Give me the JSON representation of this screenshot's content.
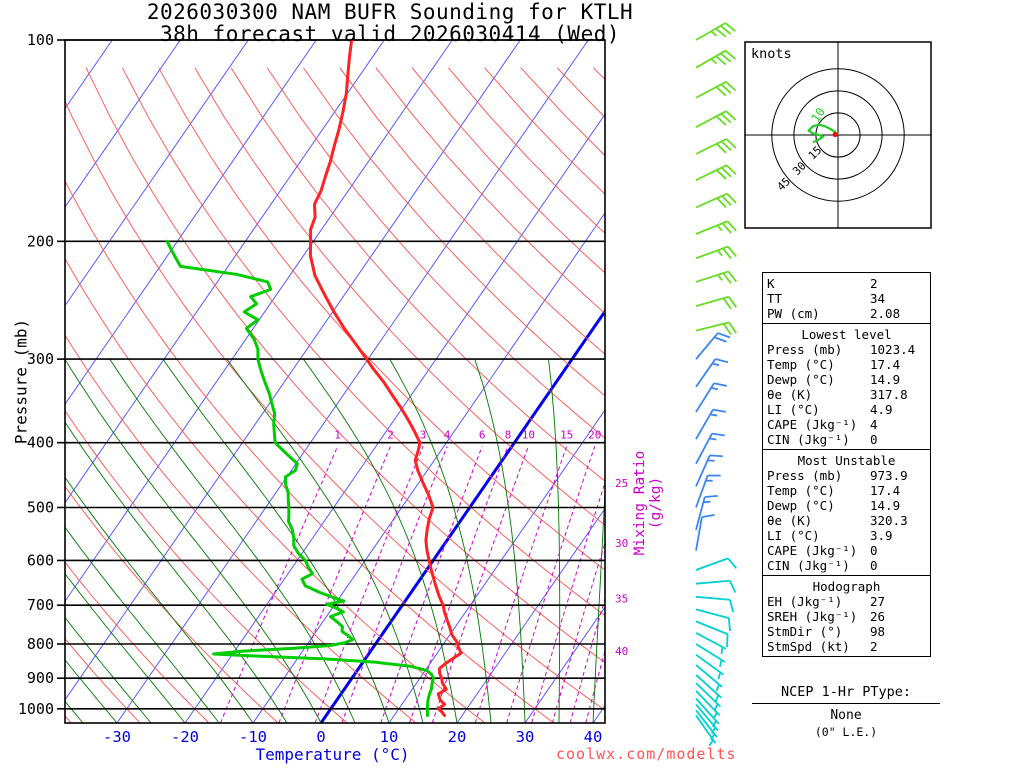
{
  "header": {
    "title_line1": "2026030300 NAM BUFR Sounding for KTLH",
    "title_line2": "38h forecast valid 2026030414 (Wed)"
  },
  "footer": {
    "watermark": "coolwx.com/modelts"
  },
  "hodograph_panel": {
    "units_label": "knots"
  },
  "ptype": {
    "title": "NCEP 1-Hr PType:",
    "value": "None",
    "note": "(0\" L.E.)"
  },
  "panel": {
    "box1": {
      "rows": [
        {
          "label": "K",
          "value": "2"
        },
        {
          "label": "TT",
          "value": "34"
        },
        {
          "label": "PW (cm)",
          "value": "2.08"
        }
      ]
    },
    "box2": {
      "header": "Lowest level",
      "rows": [
        {
          "label": "Press (mb)",
          "value": "1023.4"
        },
        {
          "label": "Temp (°C)",
          "value": "17.4"
        },
        {
          "label": "Dewp (°C)",
          "value": "14.9"
        },
        {
          "label": "θe (K)",
          "value": "317.8"
        },
        {
          "label": "LI (°C)",
          "value": "4.9"
        },
        {
          "label": "CAPE (Jkg⁻¹)",
          "value": "4"
        },
        {
          "label": "CIN (Jkg⁻¹)",
          "value": "0"
        }
      ]
    },
    "box3": {
      "header": "Most Unstable",
      "rows": [
        {
          "label": "Press (mb)",
          "value": "973.9"
        },
        {
          "label": "Temp (°C)",
          "value": "17.4"
        },
        {
          "label": "Dewp (°C)",
          "value": "14.9"
        },
        {
          "label": "θe (K)",
          "value": "320.3"
        },
        {
          "label": "LI (°C)",
          "value": "3.9"
        },
        {
          "label": "CAPE (Jkg⁻¹)",
          "value": "0"
        },
        {
          "label": "CIN (Jkg⁻¹)",
          "value": "0"
        }
      ]
    },
    "box4": {
      "header": "Hodograph",
      "rows": [
        {
          "label": "EH (Jkg⁻¹)",
          "value": "27"
        },
        {
          "label": "SREH (Jkg⁻¹)",
          "value": "26"
        },
        {
          "label": "StmDir (°)",
          "value": "98"
        },
        {
          "label": "StmSpd (kt)",
          "value": "2"
        }
      ]
    }
  },
  "chart_data": {
    "type": "skewt_log_p",
    "station": "KTLH",
    "model": "NAM BUFR",
    "run": "2026030300",
    "valid": "2026030414 (Wed)",
    "forecast_hour": 38,
    "ylabel": "Pressure (mb)",
    "xlabel": "Temperature (°C)",
    "mixing_ratio_axis_label": "Mixing Ratio (g/kg)",
    "pressure_ticks": [
      100,
      200,
      300,
      400,
      500,
      600,
      700,
      800,
      900,
      1000
    ],
    "temp_ticks": [
      -30,
      -20,
      -10,
      0,
      10,
      20,
      30,
      40
    ],
    "pressure_range": [
      100,
      1050
    ],
    "isotherm_step": 10,
    "highlight_isotherm": 0,
    "mixing_ratio_lines": [
      1,
      2,
      3,
      4,
      6,
      8,
      10,
      15,
      20,
      25,
      30,
      35,
      40
    ],
    "colors": {
      "isobar": "#000000",
      "isotherm": "#4848ff",
      "isotherm_highlight": "#0000ee",
      "dry_adiabat": "#ff5050",
      "moist_adiabat": "#007700",
      "mixing_ratio": "#cc00cc",
      "temperature": "#ff2222",
      "dewpoint": "#00cc00",
      "temp_tick_label": "#0000dd",
      "barb_high": "#66dd22",
      "barb_mid": "#3d85f0",
      "barb_low": "#00d0d0",
      "hodo_trace": "#22cc22",
      "storm_motion": "#ff0000",
      "watermark": "#ff5555"
    },
    "temperature_profile": [
      [
        1023.4,
        17.4
      ],
      [
        1010,
        16.6
      ],
      [
        1000,
        15.8
      ],
      [
        985,
        16.3
      ],
      [
        970,
        15.2
      ],
      [
        950,
        14.3
      ],
      [
        935,
        15.0
      ],
      [
        915,
        13.8
      ],
      [
        900,
        13.2
      ],
      [
        885,
        12.4
      ],
      [
        870,
        11.9
      ],
      [
        855,
        12.3
      ],
      [
        840,
        12.9
      ],
      [
        825,
        13.5
      ],
      [
        810,
        12.6
      ],
      [
        795,
        11.8
      ],
      [
        775,
        10.3
      ],
      [
        755,
        9.2
      ],
      [
        735,
        8.0
      ],
      [
        715,
        6.8
      ],
      [
        700,
        6.0
      ],
      [
        680,
        4.6
      ],
      [
        660,
        3.3
      ],
      [
        640,
        2.0
      ],
      [
        620,
        0.7
      ],
      [
        600,
        -0.6
      ],
      [
        580,
        -1.9
      ],
      [
        560,
        -3.1
      ],
      [
        540,
        -4.0
      ],
      [
        520,
        -4.8
      ],
      [
        500,
        -5.4
      ],
      [
        480,
        -7.2
      ],
      [
        460,
        -9.3
      ],
      [
        440,
        -11.4
      ],
      [
        425,
        -12.8
      ],
      [
        410,
        -13.4
      ],
      [
        400,
        -13.9
      ],
      [
        385,
        -15.8
      ],
      [
        370,
        -17.9
      ],
      [
        355,
        -20.2
      ],
      [
        340,
        -22.7
      ],
      [
        325,
        -25.3
      ],
      [
        310,
        -28.3
      ],
      [
        300,
        -30.2
      ],
      [
        285,
        -33.3
      ],
      [
        270,
        -36.6
      ],
      [
        255,
        -39.8
      ],
      [
        240,
        -43.0
      ],
      [
        225,
        -46.3
      ],
      [
        210,
        -49.0
      ],
      [
        200,
        -50.4
      ],
      [
        192,
        -51.6
      ],
      [
        184,
        -52.2
      ],
      [
        176,
        -53.6
      ],
      [
        168,
        -54.0
      ],
      [
        160,
        -54.8
      ],
      [
        152,
        -55.6
      ],
      [
        144,
        -56.6
      ],
      [
        136,
        -57.6
      ],
      [
        128,
        -58.8
      ],
      [
        120,
        -60.2
      ],
      [
        112,
        -62.0
      ],
      [
        106,
        -63.4
      ],
      [
        100,
        -64.8
      ]
    ],
    "dewpoint_profile": [
      [
        1023.4,
        14.9
      ],
      [
        1010,
        14.5
      ],
      [
        1000,
        14.2
      ],
      [
        985,
        13.8
      ],
      [
        970,
        13.4
      ],
      [
        950,
        13.0
      ],
      [
        935,
        12.8
      ],
      [
        915,
        12.3
      ],
      [
        900,
        12.0
      ],
      [
        888,
        11.3
      ],
      [
        876,
        10.2
      ],
      [
        864,
        7.5
      ],
      [
        852,
        2.0
      ],
      [
        842,
        -6.0
      ],
      [
        834,
        -16.0
      ],
      [
        828,
        -22.8
      ],
      [
        820,
        -19.0
      ],
      [
        812,
        -11.5
      ],
      [
        804,
        -6.5
      ],
      [
        796,
        -4.6
      ],
      [
        788,
        -3.8
      ],
      [
        778,
        -4.8
      ],
      [
        766,
        -6.2
      ],
      [
        754,
        -6.6
      ],
      [
        742,
        -7.8
      ],
      [
        728,
        -9.4
      ],
      [
        716,
        -8.0
      ],
      [
        706,
        -9.6
      ],
      [
        698,
        -11.2
      ],
      [
        690,
        -9.0
      ],
      [
        682,
        -10.8
      ],
      [
        670,
        -13.4
      ],
      [
        655,
        -16.2
      ],
      [
        640,
        -17.4
      ],
      [
        628,
        -16.4
      ],
      [
        615,
        -17.6
      ],
      [
        600,
        -18.8
      ],
      [
        585,
        -20.6
      ],
      [
        570,
        -22.0
      ],
      [
        555,
        -22.8
      ],
      [
        540,
        -23.8
      ],
      [
        525,
        -25.2
      ],
      [
        510,
        -26.0
      ],
      [
        500,
        -26.6
      ],
      [
        488,
        -27.4
      ],
      [
        475,
        -28.2
      ],
      [
        462,
        -29.4
      ],
      [
        450,
        -30.2
      ],
      [
        440,
        -29.4
      ],
      [
        430,
        -29.8
      ],
      [
        420,
        -31.6
      ],
      [
        410,
        -33.4
      ],
      [
        400,
        -35.2
      ],
      [
        388,
        -36.2
      ],
      [
        375,
        -37.3
      ],
      [
        362,
        -38.2
      ],
      [
        350,
        -39.6
      ],
      [
        338,
        -41.0
      ],
      [
        325,
        -42.8
      ],
      [
        312,
        -44.6
      ],
      [
        300,
        -46.2
      ],
      [
        290,
        -47.2
      ],
      [
        280,
        -48.8
      ],
      [
        270,
        -51.0
      ],
      [
        262,
        -50.2
      ],
      [
        255,
        -53.0
      ],
      [
        248,
        -52.0
      ],
      [
        242,
        -53.6
      ],
      [
        236,
        -51.4
      ],
      [
        230,
        -52.6
      ],
      [
        224,
        -58.0
      ],
      [
        218,
        -67.0
      ],
      [
        212,
        -68.5
      ],
      [
        206,
        -70.0
      ],
      [
        200,
        -71.5
      ]
    ],
    "wind_barbs": [
      [
        100,
        60,
        35,
        "g"
      ],
      [
        110,
        60,
        35,
        "g"
      ],
      [
        122,
        62,
        30,
        "g"
      ],
      [
        135,
        62,
        30,
        "g"
      ],
      [
        148,
        64,
        30,
        "g"
      ],
      [
        162,
        64,
        30,
        "g"
      ],
      [
        178,
        66,
        30,
        "g"
      ],
      [
        195,
        68,
        25,
        "g"
      ],
      [
        212,
        70,
        25,
        "g"
      ],
      [
        230,
        72,
        25,
        "g"
      ],
      [
        250,
        74,
        20,
        "g"
      ],
      [
        272,
        76,
        20,
        "g"
      ],
      [
        300,
        40,
        20,
        "b"
      ],
      [
        330,
        35,
        15,
        "b"
      ],
      [
        360,
        32,
        15,
        "b"
      ],
      [
        395,
        30,
        15,
        "b"
      ],
      [
        430,
        28,
        15,
        "b"
      ],
      [
        465,
        24,
        15,
        "b"
      ],
      [
        500,
        20,
        15,
        "b"
      ],
      [
        540,
        15,
        15,
        "b"
      ],
      [
        580,
        10,
        10,
        "b"
      ],
      [
        620,
        70,
        10,
        "c"
      ],
      [
        650,
        85,
        10,
        "c"
      ],
      [
        680,
        95,
        10,
        "c"
      ],
      [
        710,
        105,
        8,
        "c"
      ],
      [
        740,
        112,
        8,
        "c"
      ],
      [
        770,
        118,
        7,
        "c"
      ],
      [
        800,
        122,
        7,
        "c"
      ],
      [
        830,
        126,
        6,
        "c"
      ],
      [
        860,
        130,
        6,
        "c"
      ],
      [
        890,
        132,
        5,
        "c"
      ],
      [
        915,
        134,
        5,
        "c"
      ],
      [
        940,
        136,
        5,
        "c"
      ],
      [
        965,
        138,
        5,
        "c"
      ],
      [
        985,
        140,
        4,
        "c"
      ],
      [
        1005,
        142,
        4,
        "c"
      ],
      [
        1023,
        145,
        3,
        "c"
      ]
    ],
    "hodograph": {
      "rings_kt": [
        15,
        30,
        45
      ],
      "trace_uv": [
        [
          0,
          0
        ],
        [
          -2,
          2
        ],
        [
          -5,
          4
        ],
        [
          -9,
          6
        ],
        [
          -13,
          7
        ],
        [
          -17,
          6
        ],
        [
          -20,
          3
        ],
        [
          -17,
          1
        ],
        [
          -13,
          0
        ],
        [
          -10,
          -1
        ],
        [
          -13,
          -3
        ],
        [
          -17,
          -5
        ]
      ],
      "trace_label": "10",
      "trace_label_uv": [
        -14,
        8
      ],
      "storm_motion_uv": [
        -2,
        0.3
      ]
    }
  }
}
